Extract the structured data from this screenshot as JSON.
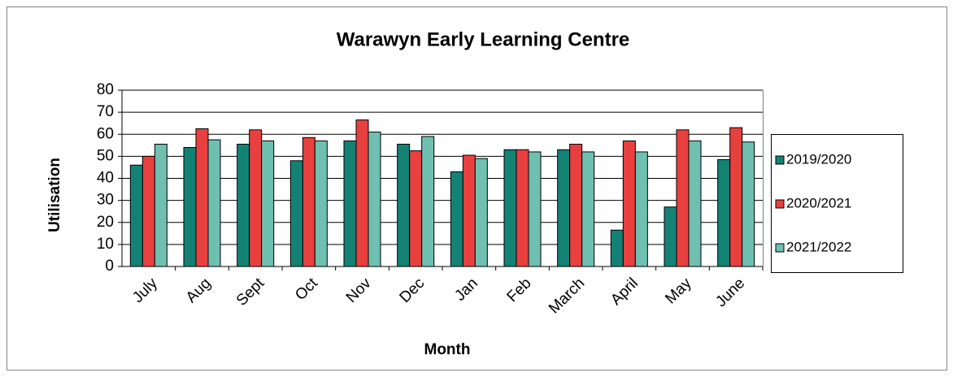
{
  "chart_data": {
    "type": "bar",
    "title": "Warawyn Early Learning  Centre",
    "x_label": "Month",
    "y_label": "Utilisation",
    "categories": [
      "July",
      "Aug",
      "Sept",
      "Oct",
      "Nov",
      "Dec",
      "Jan",
      "Feb",
      "March",
      "April",
      "May",
      "June"
    ],
    "series": [
      {
        "name": "2019/2020",
        "color": "#138275",
        "values": [
          46,
          54,
          55.5,
          48,
          57,
          55.5,
          43,
          53,
          53,
          16.5,
          27,
          48.5
        ]
      },
      {
        "name": "2020/2021",
        "color": "#e8403f",
        "values": [
          50,
          62.5,
          62,
          58.5,
          66.5,
          52.5,
          50.5,
          53,
          55.5,
          57,
          62,
          63
        ]
      },
      {
        "name": "2021/2022",
        "color": "#6fc0b1",
        "values": [
          55.5,
          57.5,
          57,
          57,
          61,
          59,
          49,
          52,
          52,
          52,
          57,
          56.5
        ]
      }
    ],
    "ylim": [
      0,
      80
    ],
    "yticks": [
      0,
      10,
      20,
      30,
      40,
      50,
      60,
      70,
      80
    ],
    "grid": true,
    "legend": "right"
  }
}
